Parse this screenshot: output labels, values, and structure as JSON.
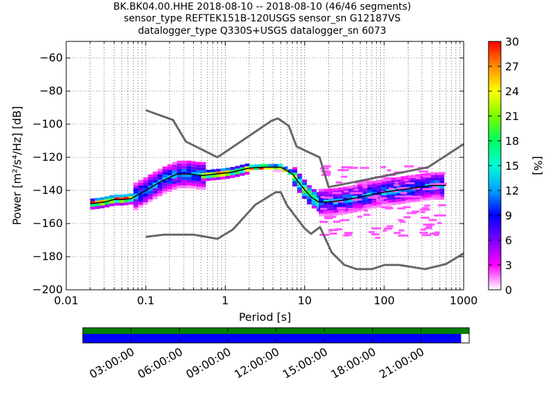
{
  "chart_data": {
    "type": "heatmap",
    "title_lines": [
      "BK.BK04.00.HHE   2018-08-10 -- 2018-08-10  (46/46 segments)",
      "sensor_type REFTEK151B-120USGS sensor_sn G12187VS",
      "datalogger_type Q330S+USGS datalogger_sn 6073"
    ],
    "xlabel": "Period [s]",
    "ylabel": "Power [m²/s⁴/Hz] [dB]",
    "xscale": "log",
    "xlim": [
      0.01,
      1000
    ],
    "ylim": [
      -200,
      -50
    ],
    "x_ticks": [
      0.01,
      0.1,
      1,
      10,
      100,
      1000
    ],
    "x_tick_labels": [
      "0.01",
      "0.1",
      "1",
      "10",
      "100",
      "1000"
    ],
    "y_ticks": [
      -200,
      -180,
      -160,
      -140,
      -120,
      -100,
      -80,
      -60
    ],
    "y_tick_labels": [
      "−200",
      "−180",
      "−160",
      "−140",
      "−120",
      "−100",
      "−80",
      "−60"
    ],
    "grid": "dotted, vertical at minor log ticks",
    "colorbar": {
      "label": "[%]",
      "range": [
        0,
        30
      ],
      "ticks": [
        0,
        3,
        6,
        9,
        12,
        15,
        18,
        21,
        24,
        27,
        30
      ],
      "tick_labels": [
        "0",
        "3",
        "6",
        "9",
        "12",
        "15",
        "18",
        "21",
        "24",
        "27",
        "30"
      ],
      "colormap": [
        "#ffffff",
        "#ff00ff",
        "#7a00ff",
        "#0000ff",
        "#00a0ff",
        "#00ffd8",
        "#00ff60",
        "#7cff00",
        "#ffff00",
        "#ff8c00",
        "#ff0000"
      ]
    },
    "noise_models": [
      {
        "name": "NHNM",
        "color": "#666666",
        "points": [
          [
            0.1,
            -91.5
          ],
          [
            0.22,
            -97.4
          ],
          [
            0.32,
            -110.5
          ],
          [
            0.8,
            -120.0
          ],
          [
            3.8,
            -98.0
          ],
          [
            4.6,
            -96.5
          ],
          [
            6.3,
            -101.0
          ],
          [
            7.9,
            -113.5
          ],
          [
            15.4,
            -120.0
          ],
          [
            20.0,
            -138.0
          ],
          [
            354.8,
            -126.0
          ],
          [
            1000,
            -112.0
          ]
        ]
      },
      {
        "name": "NLNM",
        "color": "#666666",
        "points": [
          [
            0.1,
            -168.0
          ],
          [
            0.17,
            -166.7
          ],
          [
            0.4,
            -166.7
          ],
          [
            0.8,
            -169.2
          ],
          [
            1.24,
            -163.7
          ],
          [
            2.4,
            -148.6
          ],
          [
            4.3,
            -141.1
          ],
          [
            5.0,
            -141.1
          ],
          [
            6.0,
            -149.0
          ],
          [
            10.0,
            -163.0
          ],
          [
            12.0,
            -166.2
          ],
          [
            15.6,
            -162.1
          ],
          [
            21.9,
            -177.5
          ],
          [
            31.6,
            -185.0
          ],
          [
            45.0,
            -187.5
          ],
          [
            70.0,
            -187.5
          ],
          [
            101.0,
            -185.0
          ],
          [
            154.0,
            -185.0
          ],
          [
            328.0,
            -187.5
          ],
          [
            600.0,
            -184.4
          ],
          [
            1000,
            -178.0
          ]
        ]
      }
    ],
    "mode_curve": {
      "color": "#000000",
      "points": [
        [
          0.02,
          -148
        ],
        [
          0.03,
          -147
        ],
        [
          0.04,
          -145.5
        ],
        [
          0.05,
          -145.5
        ],
        [
          0.065,
          -145
        ],
        [
          0.1,
          -140
        ],
        [
          0.15,
          -135
        ],
        [
          0.25,
          -130
        ],
        [
          0.35,
          -130
        ],
        [
          0.5,
          -131
        ],
        [
          0.8,
          -130
        ],
        [
          1.2,
          -129
        ],
        [
          2.0,
          -126.5
        ],
        [
          3.0,
          -126
        ],
        [
          5.0,
          -126
        ],
        [
          7.0,
          -130
        ],
        [
          9.0,
          -137
        ],
        [
          12.0,
          -144
        ],
        [
          15.0,
          -147
        ],
        [
          20.0,
          -147
        ],
        [
          30.0,
          -146
        ],
        [
          50.0,
          -144
        ],
        [
          100.0,
          -141
        ],
        [
          200.0,
          -139
        ],
        [
          400.0,
          -137
        ],
        [
          600.0,
          -137
        ]
      ]
    },
    "density_bands": [
      {
        "period_range": [
          0.02,
          0.07
        ],
        "power_center": -146,
        "spread_db": 3,
        "peak_percent": 30
      },
      {
        "period_range": [
          0.07,
          0.5
        ],
        "power_center": -135,
        "spread_db": 8,
        "peak_percent": 12
      },
      {
        "period_range": [
          0.5,
          2.0
        ],
        "power_center": -130,
        "spread_db": 3,
        "peak_percent": 28
      },
      {
        "period_range": [
          2.0,
          7.0
        ],
        "power_center": -126,
        "spread_db": 2,
        "peak_percent": 30
      },
      {
        "period_range": [
          7.0,
          15.0
        ],
        "power_center": -140,
        "spread_db": 6,
        "peak_percent": 20
      },
      {
        "period_range": [
          15.0,
          700.0
        ],
        "power_center": -143,
        "spread_db": 8,
        "peak_percent": 12
      }
    ],
    "scatter_region": {
      "period_range": [
        15,
        500
      ],
      "power_range": [
        -168,
        -124
      ],
      "percent": 2
    },
    "time_axis": {
      "tick_labels": [
        "03:00:00",
        "06:00:00",
        "09:00:00",
        "12:00:00",
        "15:00:00",
        "18:00:00",
        "21:00:00"
      ],
      "tick_hours": [
        3,
        6,
        9,
        12,
        15,
        18,
        21
      ],
      "range_hours": [
        0,
        24
      ],
      "data_coverage_color": "#008000",
      "psd_coverage_color": "#0000ff",
      "psd_coverage_end_hours": 23.5
    }
  }
}
